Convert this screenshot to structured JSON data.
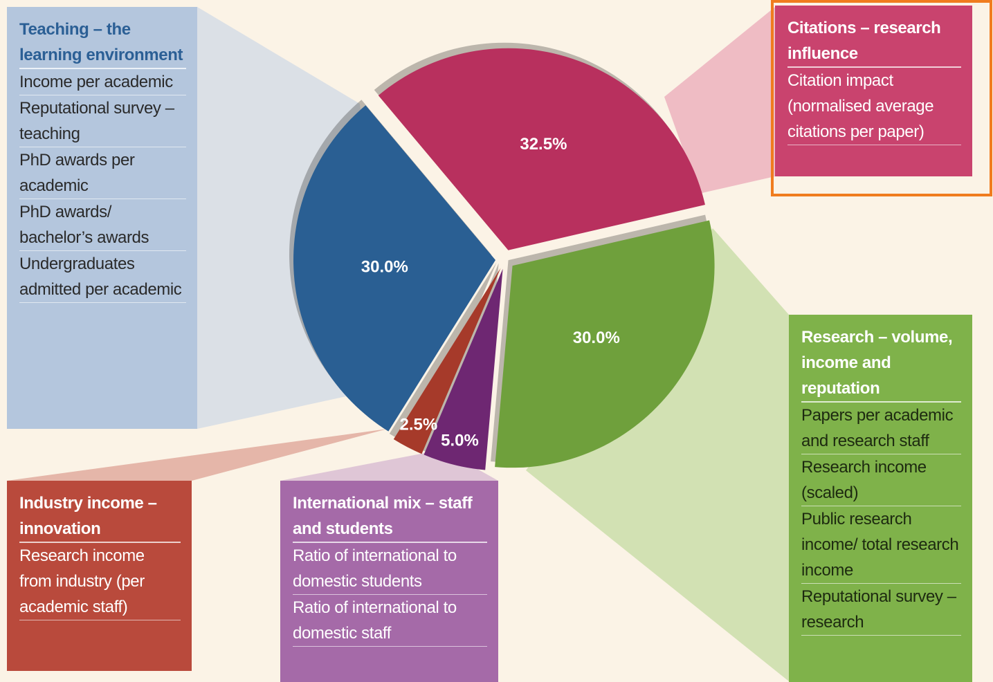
{
  "chart_data": {
    "type": "pie",
    "categories": [
      "Citations – research influence",
      "Research – volume, income and reputation",
      "International mix – staff and students",
      "Industry income – innovation",
      "Teaching – the learning environment"
    ],
    "values": [
      32.5,
      30,
      5,
      2.5,
      30
    ],
    "value_labels": [
      "32.5%",
      "30.0%",
      "5.0%",
      "2.5%",
      "30.0%"
    ],
    "colors": [
      "#b8305e",
      "#6fa03c",
      "#6e2772",
      "#a63a2a",
      "#2a5f93"
    ],
    "details": [
      [
        "Citation impact (normalised average citations per paper)"
      ],
      [
        "Papers per academic and research staff",
        "Research income (scaled)",
        "Public research income/ total research income",
        "Reputational survey – research"
      ],
      [
        "Ratio of international to domestic students",
        "Ratio of international to domestic staff"
      ],
      [
        "Research income from industry (per academic staff)"
      ],
      [
        "Income per academic",
        "Reputational survey – teaching",
        "PhD awards per academic",
        "PhD awards/ bachelor’s awards",
        "Undergraduates admitted per academic"
      ]
    ]
  }
}
